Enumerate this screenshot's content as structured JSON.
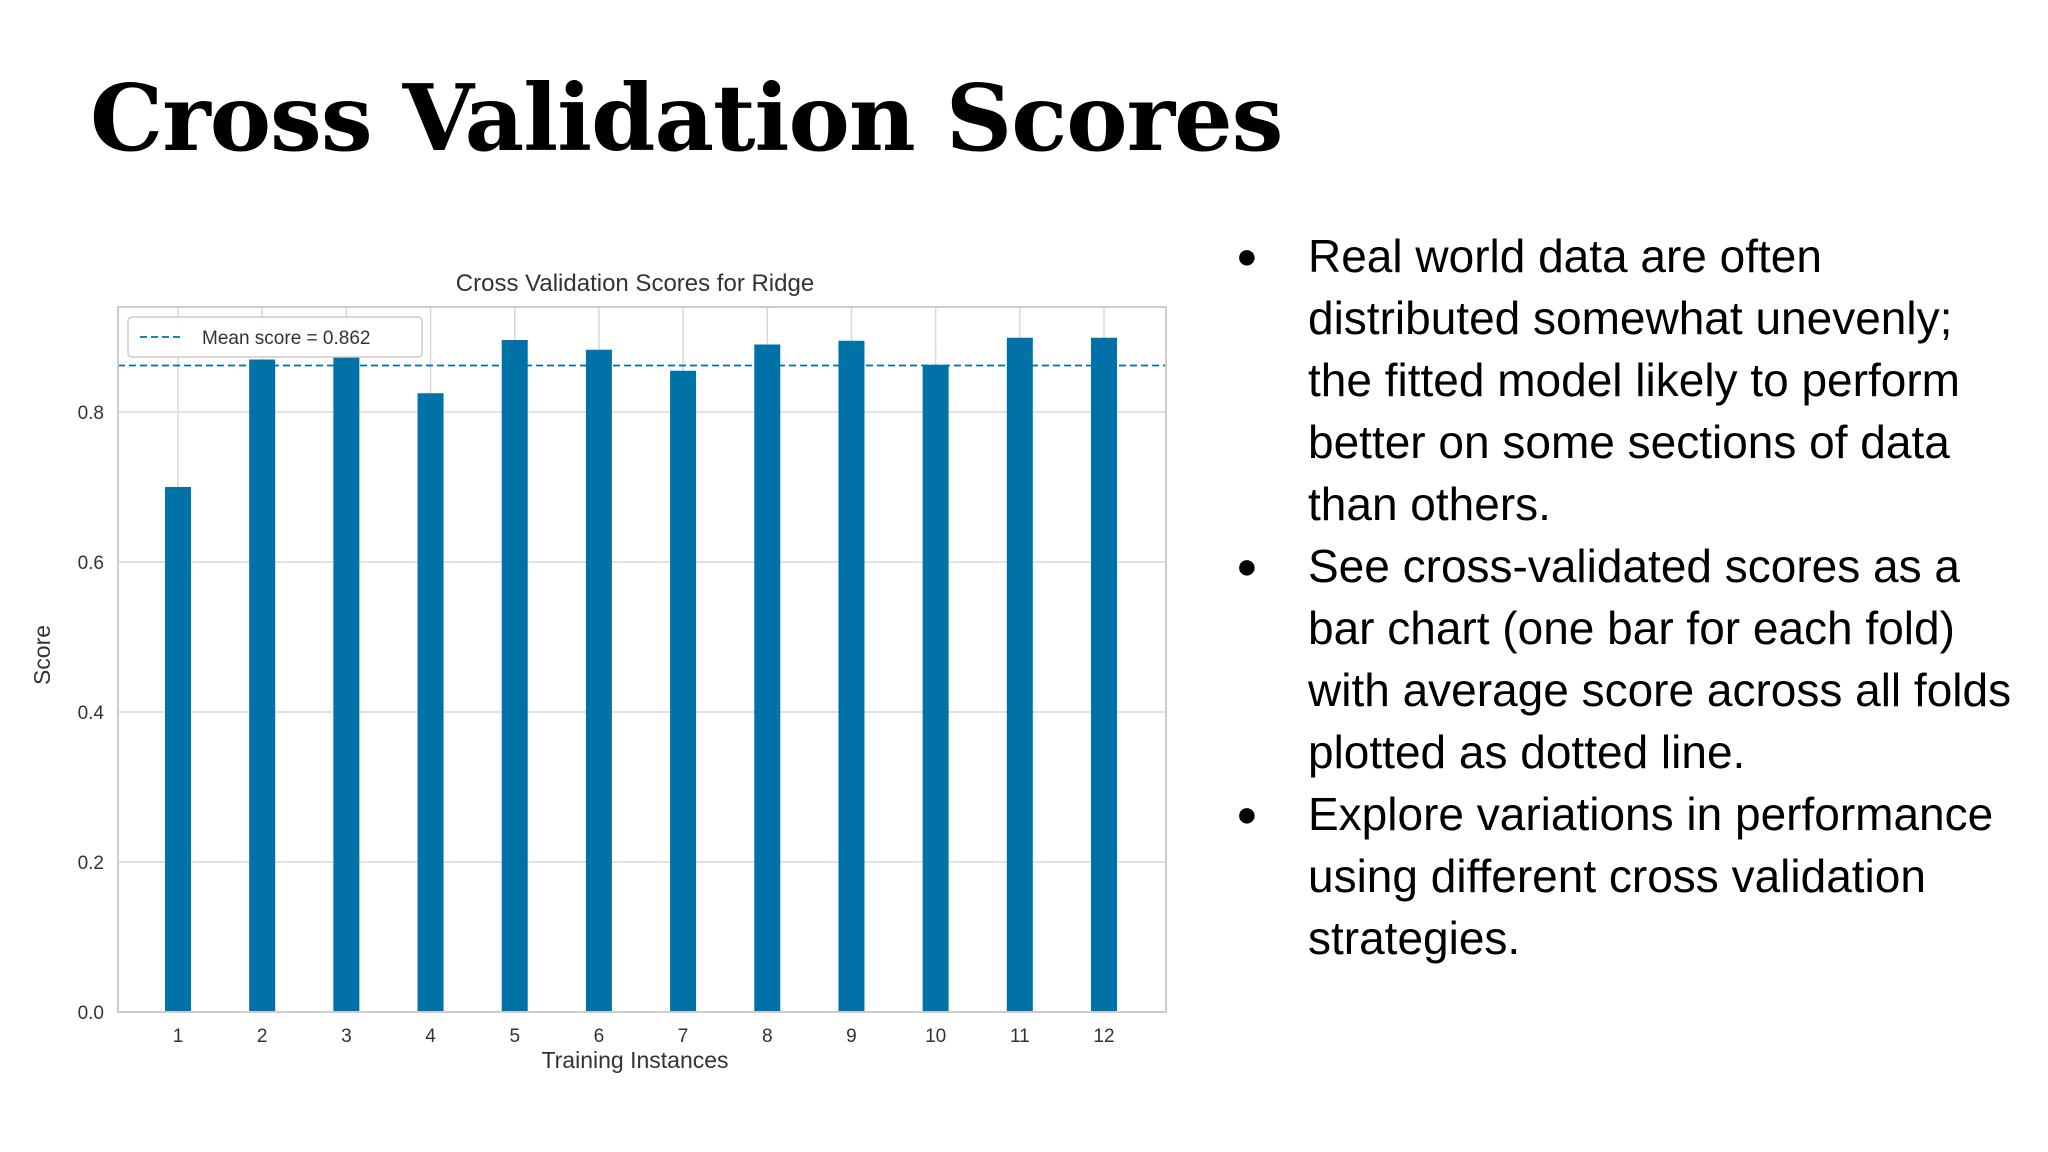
{
  "slide": {
    "title": "Cross Validation Scores",
    "bullets": [
      "Real world data are often distributed somewhat unevenly; the fitted model likely to perform better on some sections of data than others.",
      "See cross-validated scores as a bar chart (one bar for each fold) with average score across all folds plotted as dotted line.",
      "Explore variations in performance using different cross validation strategies."
    ],
    "bullet_symbol": "●"
  },
  "chart_data": {
    "type": "bar",
    "title": "Cross Validation Scores for Ridge",
    "xlabel": "Training Instances",
    "ylabel": "Score",
    "categories": [
      "1",
      "2",
      "3",
      "4",
      "5",
      "6",
      "7",
      "8",
      "9",
      "10",
      "11",
      "12"
    ],
    "values": [
      0.7,
      0.87,
      0.873,
      0.825,
      0.896,
      0.883,
      0.855,
      0.89,
      0.895,
      0.863,
      0.899,
      0.899
    ],
    "ylim": [
      0,
      0.94
    ],
    "yticks": [
      "0.0",
      "0.2",
      "0.4",
      "0.6",
      "0.8"
    ],
    "mean_score": 0.862,
    "legend": {
      "label": "Mean score = 0.862",
      "position": "top-left"
    },
    "grid": true,
    "colors": {
      "bar": "#0072a8",
      "mean_line": "#0072a8",
      "grid": "#d8d8d8",
      "frame": "#cccccc"
    }
  }
}
